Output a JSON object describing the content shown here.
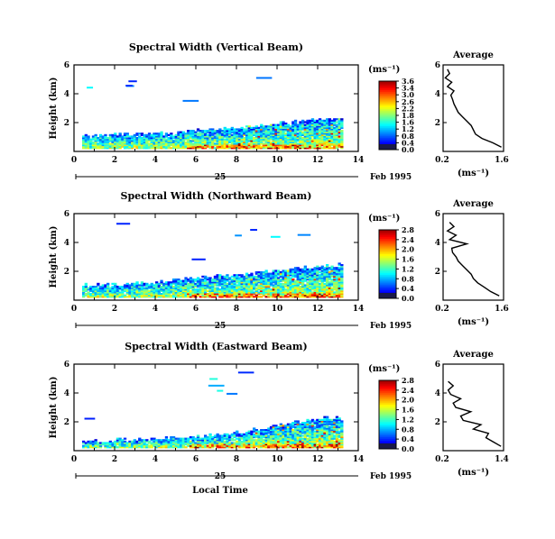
{
  "chart_data": [
    {
      "type": "heatmap",
      "title": "Spectral Width (Vertical Beam)",
      "ylabel": "Height (km)",
      "xlabel": "",
      "xlim": [
        0,
        14
      ],
      "ylim": [
        0,
        6
      ],
      "xticks": [
        0,
        2,
        4,
        6,
        8,
        10,
        12,
        14
      ],
      "yticks": [
        2,
        4,
        6
      ],
      "date_day": "25",
      "date_label": "Feb 1995",
      "colorbar": {
        "unit": "(ms⁻¹)",
        "ticks": [
          "3.6",
          "3.4",
          "3.0",
          "2.6",
          "2.2",
          "1.8",
          "1.6",
          "1.2",
          "0.8",
          "0.4",
          "0.0"
        ],
        "range": [
          0,
          3.6
        ]
      },
      "echo_top_km": [
        [
          0,
          1.0
        ],
        [
          2,
          1.1
        ],
        [
          4,
          1.2
        ],
        [
          6,
          1.4
        ],
        [
          8,
          1.6
        ],
        [
          10,
          1.9
        ],
        [
          12,
          2.2
        ],
        [
          13.2,
          2.3
        ]
      ],
      "avg_profile": {
        "title": "Average",
        "xlabel": "(ms⁻¹)",
        "xlim": [
          0.2,
          1.6
        ],
        "xticks": [
          "0.2",
          "1.6"
        ],
        "ylim": [
          0,
          6
        ],
        "yticks": [
          2,
          4,
          6
        ],
        "height_km": [
          0.3,
          0.6,
          0.9,
          1.2,
          1.5,
          1.8,
          2.1,
          2.4,
          2.7,
          3.0,
          3.3,
          3.6,
          3.9,
          4.2,
          4.5,
          4.8,
          5.1,
          5.4,
          5.7
        ],
        "width": [
          1.55,
          1.35,
          1.1,
          0.95,
          0.9,
          0.85,
          0.75,
          0.65,
          0.55,
          0.5,
          0.45,
          0.42,
          0.38,
          0.45,
          0.3,
          0.4,
          0.25,
          0.35,
          0.3
        ]
      }
    },
    {
      "type": "heatmap",
      "title": "Spectral Width (Northward Beam)",
      "ylabel": "Height (km)",
      "xlabel": "",
      "xlim": [
        0,
        14
      ],
      "ylim": [
        0,
        6
      ],
      "xticks": [
        0,
        2,
        4,
        6,
        8,
        10,
        12,
        14
      ],
      "yticks": [
        2,
        4,
        6
      ],
      "date_day": "25",
      "date_label": "Feb 1995",
      "colorbar": {
        "unit": "(ms⁻¹)",
        "ticks": [
          "2.8",
          "2.4",
          "2.0",
          "1.6",
          "1.2",
          "0.8",
          "0.4",
          "0.0"
        ],
        "range": [
          0,
          2.8
        ]
      },
      "echo_top_km": [
        [
          0,
          1.0
        ],
        [
          2,
          1.0
        ],
        [
          4,
          1.2
        ],
        [
          6,
          1.5
        ],
        [
          8,
          1.7
        ],
        [
          10,
          2.0
        ],
        [
          12,
          2.3
        ],
        [
          13.2,
          2.4
        ]
      ],
      "avg_profile": {
        "title": "Average",
        "xlabel": "(ms⁻¹)",
        "xlim": [
          0.2,
          1.6
        ],
        "xticks": [
          "0.2",
          "1.6"
        ],
        "ylim": [
          0,
          6
        ],
        "yticks": [
          2,
          4,
          6
        ],
        "height_km": [
          0.3,
          0.6,
          0.9,
          1.2,
          1.5,
          1.8,
          2.1,
          2.4,
          2.7,
          3.0,
          3.3,
          3.6,
          3.9,
          4.2,
          4.5,
          4.8,
          5.1,
          5.4
        ],
        "width": [
          1.5,
          1.3,
          1.15,
          1.0,
          0.9,
          0.85,
          0.75,
          0.65,
          0.55,
          0.5,
          0.42,
          0.4,
          0.75,
          0.35,
          0.5,
          0.3,
          0.45,
          0.35
        ]
      }
    },
    {
      "type": "heatmap",
      "title": "Spectral Width (Eastward Beam)",
      "ylabel": "Height (km)",
      "xlabel": "Local Time",
      "xlim": [
        0,
        14
      ],
      "ylim": [
        0,
        6
      ],
      "xticks": [
        0,
        2,
        4,
        6,
        8,
        10,
        12,
        14
      ],
      "yticks": [
        2,
        4,
        6
      ],
      "date_day": "25",
      "date_label": "Feb 1995",
      "colorbar": {
        "unit": "(ms⁻¹)",
        "ticks": [
          "2.8",
          "2.4",
          "2.0",
          "1.6",
          "1.2",
          "0.8",
          "0.4",
          "0.0"
        ],
        "range": [
          0,
          2.8
        ]
      },
      "echo_top_km": [
        [
          0,
          0.6
        ],
        [
          2,
          0.7
        ],
        [
          4,
          0.8
        ],
        [
          6,
          0.9
        ],
        [
          8,
          1.2
        ],
        [
          10,
          1.7
        ],
        [
          12,
          2.2
        ],
        [
          13.2,
          2.3
        ]
      ],
      "avg_profile": {
        "title": "Average",
        "xlabel": "(ms⁻¹)",
        "xlim": [
          0.2,
          1.4
        ],
        "xticks": [
          "0.2",
          "1.4"
        ],
        "ylim": [
          0,
          6
        ],
        "yticks": [
          2,
          4,
          6
        ],
        "height_km": [
          0.3,
          0.6,
          0.9,
          1.2,
          1.5,
          1.8,
          2.1,
          2.4,
          2.7,
          3.0,
          3.3,
          3.6,
          3.9,
          4.2,
          4.5,
          4.8
        ],
        "width": [
          1.35,
          1.2,
          1.05,
          1.1,
          0.8,
          0.95,
          0.6,
          0.55,
          0.75,
          0.45,
          0.4,
          0.55,
          0.35,
          0.3,
          0.4,
          0.3
        ]
      }
    }
  ]
}
